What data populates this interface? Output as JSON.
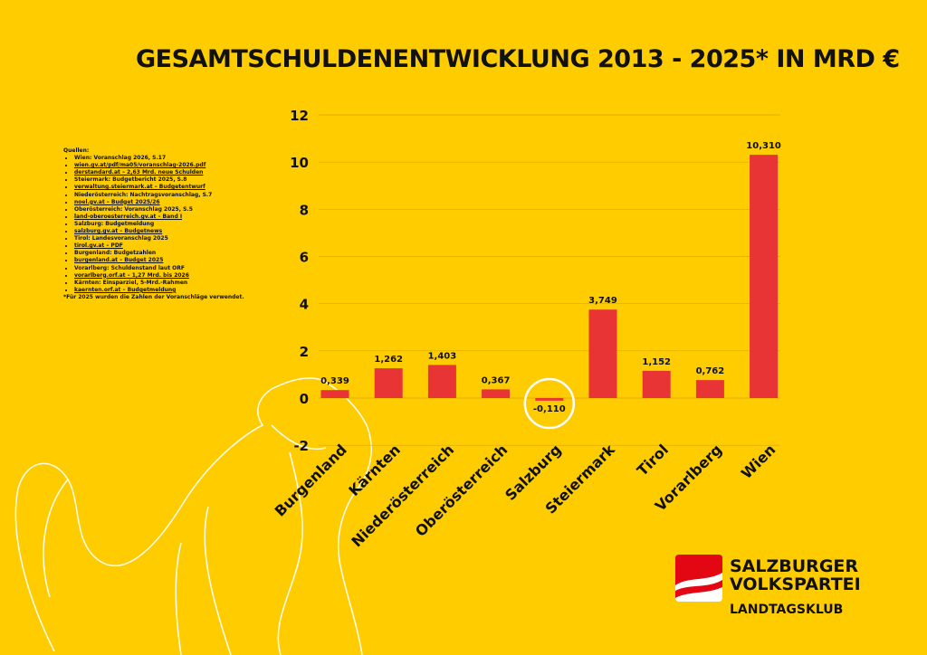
{
  "title": "GESAMTSCHULDENENTWICKLUNG 2013 - 2025* IN MRD €",
  "sources": {
    "heading": "Quellen:",
    "items": [
      {
        "text": "Wien: Voranschlag 2026, S.17",
        "link": false
      },
      {
        "text": "wien.gv.at/pdf/ma05/voranschlag-2026.pdf",
        "link": true
      },
      {
        "text": "derstandard.at – 2,63 Mrd. neue Schulden",
        "link": true
      },
      {
        "text": "Steiermark: Budgetbericht 2025, S.8",
        "link": false
      },
      {
        "text": "verwaltung.steiermark.at – Budgetentwurf",
        "link": true
      },
      {
        "text": "Niederösterreich: Nachtragsvoranschlag, S.7",
        "link": false
      },
      {
        "text": "noel.gv.at – Budget 2025/26",
        "link": true
      },
      {
        "text": "Oberösterreich: Voranschlag 2025, S.5",
        "link": false
      },
      {
        "text": "land-oberoesterreich.gv.at – Band I",
        "link": true
      },
      {
        "text": "Salzburg: Budgetmeldung",
        "link": false
      },
      {
        "text": "salzburg.gv.at – Budgetnews",
        "link": true
      },
      {
        "text": "Tirol: Landesvoranschlag 2025",
        "link": false
      },
      {
        "text": "tirol.gv.at – PDF",
        "link": true
      },
      {
        "text": "Burgenland: Budgetzahlen",
        "link": false
      },
      {
        "text": "burgenland.at – Budget 2025",
        "link": true
      },
      {
        "text": "Vorarlberg: Schuldenstand laut ORF",
        "link": false
      },
      {
        "text": "vorarlberg.orf.at – 1,27 Mrd. bis 2026",
        "link": true
      },
      {
        "text": "Kärnten: Einsparziel, 5-Mrd.-Rahmen",
        "link": false
      },
      {
        "text": "kaernten.orf.at – Budgetmeldung",
        "link": true
      }
    ],
    "footnote": "*Für 2025 wurden die Zahlen der Voranschläge verwendet."
  },
  "logo": {
    "line1": "SALZBURGER",
    "line2": "VOLKSPARTEI",
    "sub": "LANDTAGSKLUB"
  },
  "colors": {
    "background": "#FFCC00",
    "bar": "#E83434",
    "highlight": "#FFFFFF"
  },
  "chart_data": {
    "type": "bar",
    "title": "GESAMTSCHULDENENTWICKLUNG 2013 - 2025* IN MRD €",
    "categories": [
      "Burgenland",
      "Kärnten",
      "Niederösterreich",
      "Oberösterreich",
      "Salzburg",
      "Steiermark",
      "Tirol",
      "Vorarlberg",
      "Wien"
    ],
    "values": [
      0.339,
      1.262,
      1.403,
      0.367,
      -0.11,
      3.749,
      1.152,
      0.762,
      10.31
    ],
    "value_labels": [
      "0,339",
      "1,262",
      "1,403",
      "0,367",
      "-0,110",
      "3,749",
      "1,152",
      "0,762",
      "10,310"
    ],
    "ylim": [
      -2,
      12
    ],
    "yticks": [
      -2,
      0,
      2,
      4,
      6,
      8,
      10,
      12
    ],
    "grid": true,
    "highlighted_category": "Salzburg",
    "xlabel": "",
    "ylabel": ""
  }
}
